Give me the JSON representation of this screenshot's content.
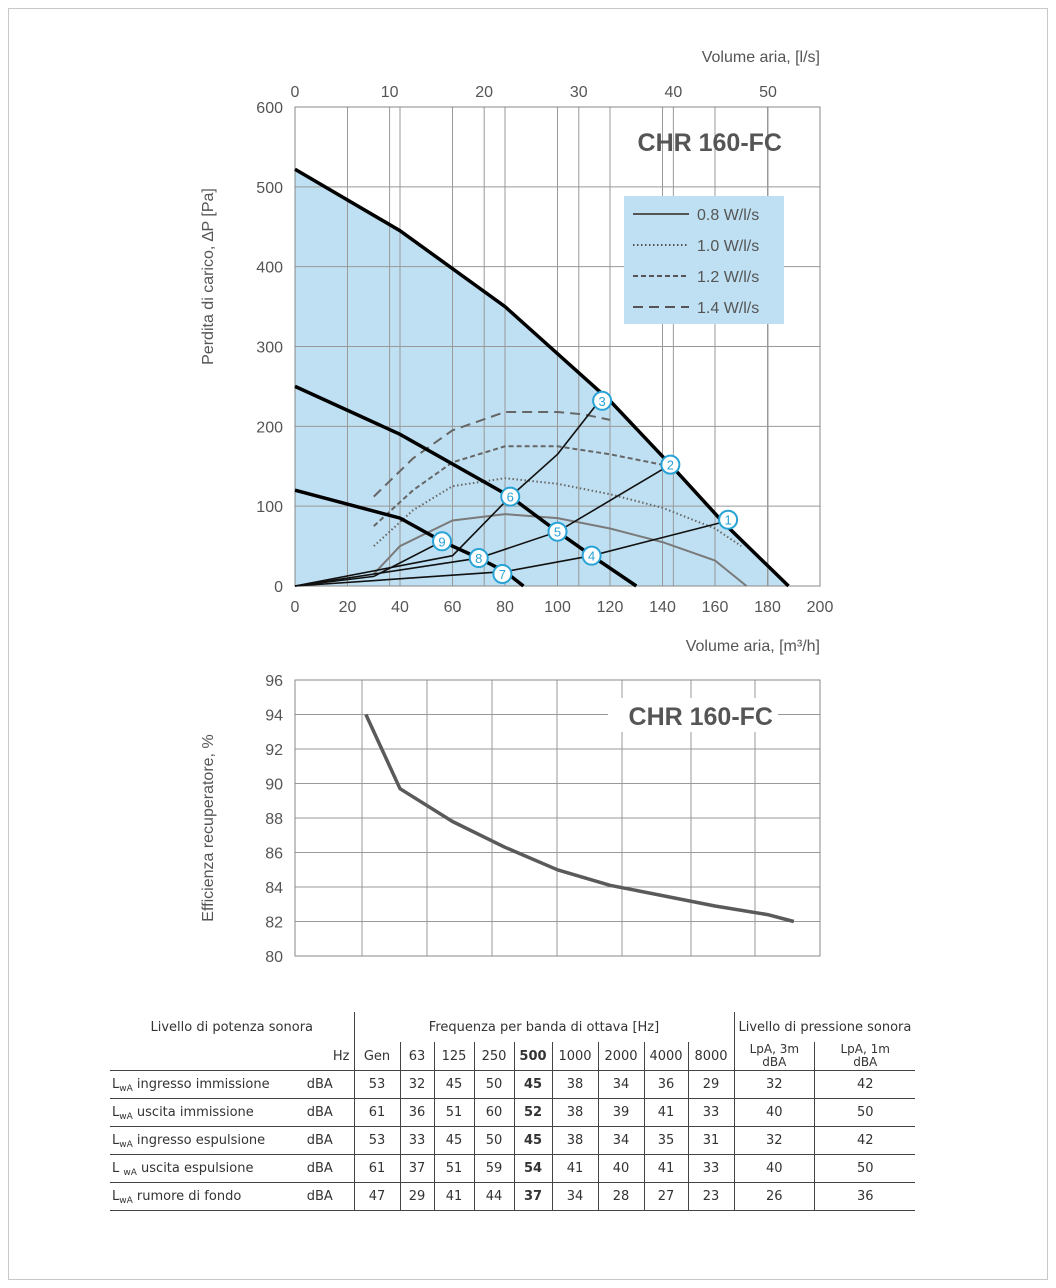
{
  "chart_data": [
    {
      "type": "line",
      "title": "CHR 160-FC",
      "xlabel": "Volume aria, [m³/h]",
      "x2label": "Volume aria, [l/s]",
      "ylabel": "Perdita di carico, ∆P [Pa]",
      "xlim": [
        0,
        200
      ],
      "ylim": [
        0,
        600
      ],
      "x2lim": [
        0,
        55.5
      ],
      "x_ticks": [
        0,
        20,
        40,
        60,
        80,
        100,
        120,
        140,
        160,
        180,
        200
      ],
      "x2_ticks": [
        0,
        10,
        20,
        30,
        40,
        50
      ],
      "y_ticks": [
        0,
        100,
        200,
        300,
        400,
        500,
        600
      ],
      "grid": true,
      "legend_position": "top-right",
      "fill_color": "#bfe0f2",
      "legend": [
        "0.8 W/l/s",
        "1.0 W/l/s",
        "1.2 W/l/s",
        "1.4 W/l/s"
      ],
      "fan_curves": [
        {
          "points": [
            [
              0,
              522
            ],
            [
              40,
              445
            ],
            [
              80,
              350
            ],
            [
              120,
              232
            ],
            [
              143,
              152
            ],
            [
              163,
              80
            ],
            [
              188,
              0
            ]
          ]
        },
        {
          "points": [
            [
              0,
              250
            ],
            [
              40,
              190
            ],
            [
              82,
              112
            ],
            [
              100,
              68
            ],
            [
              113,
              38
            ],
            [
              130,
              0
            ]
          ]
        },
        {
          "points": [
            [
              0,
              120
            ],
            [
              40,
              85
            ],
            [
              56,
              56
            ],
            [
              70,
              35
            ],
            [
              80,
              18
            ],
            [
              87,
              0
            ]
          ]
        }
      ],
      "system_curves": [
        {
          "points": [
            [
              0,
              0
            ],
            [
              60,
              38
            ],
            [
              82,
              112
            ],
            [
              100,
              165
            ],
            [
              116,
              232
            ]
          ]
        },
        {
          "points": [
            [
              0,
              0
            ],
            [
              70,
              35
            ],
            [
              100,
              68
            ],
            [
              143,
              152
            ]
          ]
        },
        {
          "points": [
            [
              0,
              0
            ],
            [
              80,
              18
            ],
            [
              113,
              38
            ],
            [
              163,
              80
            ]
          ]
        },
        {
          "points": [
            [
              0,
              0
            ],
            [
              30,
              12
            ],
            [
              56,
              56
            ]
          ]
        }
      ],
      "efficiency_series": [
        {
          "name": "0.8 W/l/s",
          "style": "solid",
          "x": [
            30,
            40,
            60,
            80,
            100,
            120,
            140,
            160,
            172
          ],
          "y": [
            15,
            50,
            82,
            90,
            85,
            72,
            55,
            32,
            0
          ]
        },
        {
          "name": "1.0 W/l/s",
          "style": "dotted",
          "x": [
            30,
            45,
            60,
            80,
            100,
            120,
            140,
            160,
            170
          ],
          "y": [
            50,
            95,
            125,
            135,
            128,
            115,
            98,
            72,
            50
          ]
        },
        {
          "name": "1.2 W/l/s",
          "style": "short-dash",
          "x": [
            30,
            45,
            60,
            80,
            100,
            120,
            143
          ],
          "y": [
            75,
            120,
            155,
            175,
            175,
            165,
            150
          ]
        },
        {
          "name": "1.4 W/l/s",
          "style": "long-dash",
          "x": [
            30,
            45,
            60,
            80,
            100,
            110,
            120
          ],
          "y": [
            112,
            160,
            195,
            218,
            218,
            215,
            208
          ]
        }
      ],
      "markers": [
        {
          "label": "1",
          "x": 165,
          "y": 83
        },
        {
          "label": "2",
          "x": 143,
          "y": 152
        },
        {
          "label": "3",
          "x": 117,
          "y": 232
        },
        {
          "label": "4",
          "x": 113,
          "y": 38
        },
        {
          "label": "5",
          "x": 100,
          "y": 68
        },
        {
          "label": "6",
          "x": 82,
          "y": 112
        },
        {
          "label": "7",
          "x": 79,
          "y": 15
        },
        {
          "label": "8",
          "x": 70,
          "y": 35
        },
        {
          "label": "9",
          "x": 56,
          "y": 56
        }
      ]
    },
    {
      "type": "line",
      "title": "CHR 160-FC",
      "xlabel": "",
      "ylabel": "Efficienza recuperatore, %",
      "xlim": [
        0,
        200
      ],
      "ylim": [
        80,
        96
      ],
      "y_ticks": [
        80,
        82,
        84,
        86,
        88,
        90,
        92,
        94,
        96
      ],
      "grid": true,
      "series": [
        {
          "x": [
            27,
            40,
            60,
            80,
            100,
            120,
            140,
            160,
            180,
            190
          ],
          "y": [
            94,
            89.7,
            87.8,
            86.3,
            85,
            84.1,
            83.5,
            82.9,
            82.4,
            82.0
          ]
        }
      ]
    }
  ],
  "table": {
    "group_headers": {
      "power": "Livello di potenza sonora",
      "frequency": "Frequenza per banda di ottava [Hz]",
      "pressure": "Livello di pressione sonora"
    },
    "unit_header": "Hz",
    "freq_columns": [
      "Gen",
      "63",
      "125",
      "250",
      "500",
      "1000",
      "2000",
      "4000",
      "8000"
    ],
    "pressure_columns": [
      {
        "line1": "LpA, 3m",
        "line2": "dBA"
      },
      {
        "line1": "LpA, 1m",
        "line2": "dBA"
      }
    ],
    "rows": [
      {
        "prefix": "L",
        "sub": "wA",
        "text": " ingresso immissione",
        "unit": "dBA",
        "values": [
          "53",
          "32",
          "45",
          "50",
          "45",
          "38",
          "34",
          "36",
          "29"
        ],
        "p3": "32",
        "p1": "42"
      },
      {
        "prefix": "L",
        "sub": "wA",
        "text": " uscita immissione",
        "unit": "dBA",
        "values": [
          "61",
          "36",
          "51",
          "60",
          "52",
          "38",
          "39",
          "41",
          "33"
        ],
        "p3": "40",
        "p1": "50"
      },
      {
        "prefix": "L",
        "sub": "wA",
        "text": " ingresso espulsione",
        "unit": "dBA",
        "values": [
          "53",
          "33",
          "45",
          "50",
          "45",
          "38",
          "34",
          "35",
          "31"
        ],
        "p3": "32",
        "p1": "42"
      },
      {
        "prefix": "L ",
        "sub": "wA",
        "text": " uscita espulsione",
        "unit": "dBA",
        "values": [
          "61",
          "37",
          "51",
          "59",
          "54",
          "41",
          "40",
          "41",
          "33"
        ],
        "p3": "40",
        "p1": "50"
      },
      {
        "prefix": "L",
        "sub": "wA",
        "text": " rumore di fondo",
        "unit": "dBA",
        "values": [
          "47",
          "29",
          "41",
          "44",
          "37",
          "34",
          "28",
          "27",
          "23"
        ],
        "p3": "26",
        "p1": "36"
      }
    ]
  }
}
